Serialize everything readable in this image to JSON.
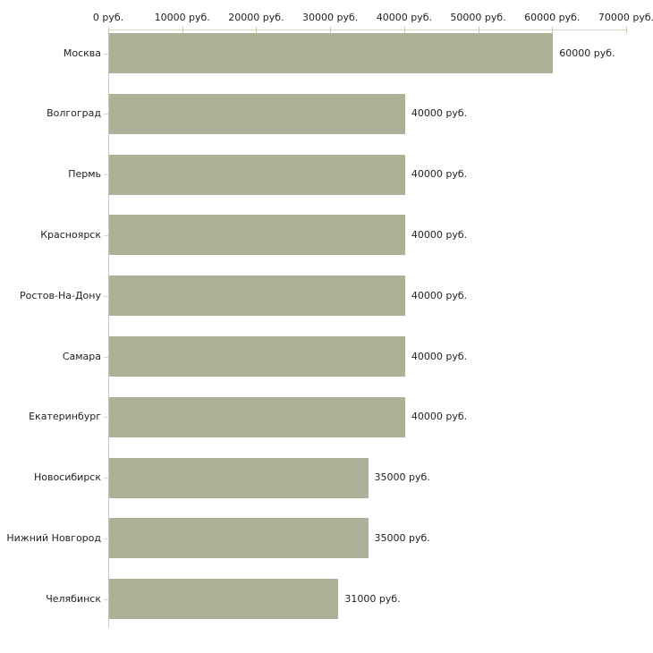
{
  "page": {
    "background_color": "#ffffff",
    "text_color": "#222222"
  },
  "chart_data": {
    "type": "bar",
    "orientation": "horizontal",
    "categories": [
      "Москва",
      "Волгоград",
      "Пермь",
      "Красноярск",
      "Ростов-На-Дону",
      "Самара",
      "Екатеринбург",
      "Новосибирск",
      "Нижний Новгород",
      "Челябинск"
    ],
    "values": [
      60000,
      40000,
      40000,
      40000,
      40000,
      40000,
      40000,
      35000,
      35000,
      31000
    ],
    "value_labels": [
      "60000 руб.",
      "40000 руб.",
      "40000 руб.",
      "40000 руб.",
      "40000 руб.",
      "40000 руб.",
      "40000 руб.",
      "35000 руб.",
      "35000 руб.",
      "31000 руб."
    ],
    "x_axis": {
      "position": "top",
      "min": 0,
      "max": 70000,
      "tick_values": [
        0,
        10000,
        20000,
        30000,
        40000,
        50000,
        60000,
        70000
      ],
      "tick_labels": [
        "0 руб.",
        "10000 руб.",
        "20000 руб.",
        "30000 руб.",
        "40000 руб.",
        "50000 руб.",
        "60000 руб.",
        "70000 руб."
      ]
    },
    "grid": false,
    "legend": false,
    "colors": {
      "bar_fill": "#abb297",
      "x_axis_line": "#d7d7c6",
      "x_tick": "#c6c6a4",
      "y_axis_line": "#c8c8c8",
      "y_tick": "#d4d4d4"
    }
  }
}
